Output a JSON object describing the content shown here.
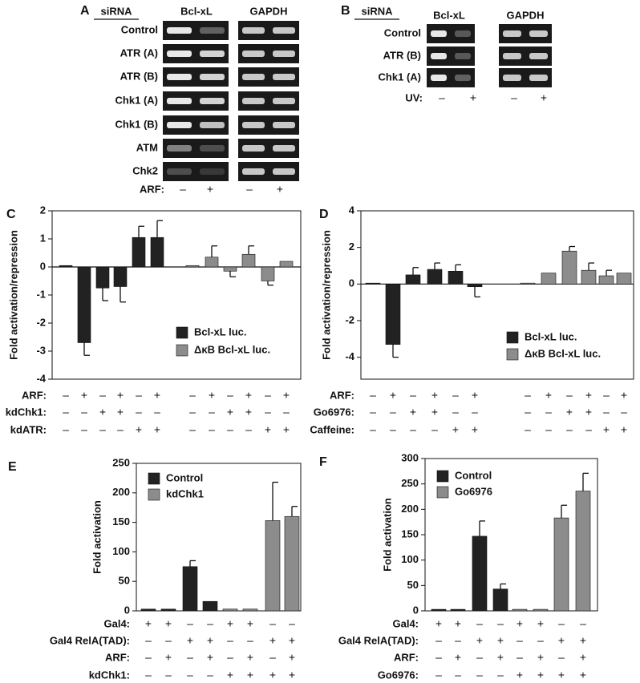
{
  "panels": [
    {
      "letter": "A",
      "header": "siRNA",
      "genes": [
        "Bcl-xL",
        "GAPDH"
      ],
      "rows": [
        "Control",
        "ATR (A)",
        "ATR (B)",
        "Chk1 (A)",
        "Chk1 (B)",
        "ATM",
        "Chk2"
      ],
      "condition": {
        "label": "ARF:",
        "signs": [
          "–",
          "+",
          "–",
          "+"
        ]
      }
    },
    {
      "letter": "B",
      "header": "siRNA",
      "genes": [
        "Bcl-xL",
        "GAPDH"
      ],
      "rows": [
        "Control",
        "ATR (B)",
        "Chk1 (A)"
      ],
      "condition": {
        "label": "UV:",
        "signs": [
          "–",
          "+",
          "–",
          "+"
        ]
      }
    }
  ],
  "chart_data": [
    {
      "type": "bar",
      "panel": "C",
      "y_label": "Fold activation/repression",
      "ylim": [
        -4,
        2
      ],
      "yticks": [
        -4,
        -3,
        -2,
        -1,
        0,
        1,
        2
      ],
      "series": [
        {
          "name": "Bcl-xL luc.",
          "color": "#222222",
          "values": [
            0.05,
            -2.7,
            -0.75,
            -0.7,
            1.05,
            1.05
          ],
          "errors": [
            null,
            0.45,
            0.45,
            0.55,
            0.4,
            0.6
          ]
        },
        {
          "name": "ΔκB Bcl-xL luc.",
          "color": "#8c8c8c",
          "values": [
            0.05,
            0.35,
            -0.15,
            0.45,
            -0.5,
            0.2
          ],
          "errors": [
            null,
            0.4,
            0.2,
            0.3,
            0.15,
            null
          ]
        }
      ],
      "conditions": [
        {
          "label": "ARF:",
          "signs": [
            "–",
            "+",
            "–",
            "+",
            "–",
            "+",
            "–",
            "+",
            "–",
            "+",
            "–",
            "+"
          ]
        },
        {
          "label": "kdChk1:",
          "signs": [
            "–",
            "–",
            "+",
            "+",
            "–",
            "–",
            "–",
            "–",
            "+",
            "+",
            "–",
            "–"
          ]
        },
        {
          "label": "kdATR:",
          "signs": [
            "–",
            "–",
            "–",
            "–",
            "+",
            "+",
            "–",
            "–",
            "–",
            "–",
            "+",
            "+"
          ]
        }
      ]
    },
    {
      "type": "bar",
      "panel": "D",
      "y_label": "Fold activation/repression",
      "ylim": [
        -5.2,
        4
      ],
      "yticks": [
        -4,
        -2,
        0,
        2,
        4
      ],
      "series": [
        {
          "name": "Bcl-xL luc.",
          "color": "#222222",
          "values": [
            0.05,
            -3.3,
            0.5,
            0.8,
            0.7,
            -0.15
          ],
          "errors": [
            null,
            0.7,
            0.4,
            0.35,
            0.35,
            0.55
          ]
        },
        {
          "name": "ΔκB Bcl-xL luc.",
          "color": "#8c8c8c",
          "values": [
            0.05,
            0.6,
            1.8,
            0.75,
            0.45,
            0.6
          ],
          "errors": [
            null,
            null,
            0.25,
            0.4,
            0.3,
            null
          ]
        }
      ],
      "conditions": [
        {
          "label": "ARF:",
          "signs": [
            "–",
            "+",
            "–",
            "+",
            "–",
            "+",
            "–",
            "+",
            "–",
            "+",
            "–",
            "+"
          ]
        },
        {
          "label": "Go6976:",
          "signs": [
            "–",
            "–",
            "+",
            "+",
            "–",
            "–",
            "–",
            "–",
            "+",
            "+",
            "–",
            "–"
          ]
        },
        {
          "label": "Caffeine:",
          "signs": [
            "–",
            "–",
            "–",
            "–",
            "+",
            "+",
            "–",
            "–",
            "–",
            "–",
            "+",
            "+"
          ]
        }
      ]
    },
    {
      "type": "bar",
      "panel": "E",
      "y_label": "Fold activation",
      "ylim": [
        0,
        250
      ],
      "yticks": [
        0,
        50,
        100,
        150,
        200,
        250
      ],
      "series": [
        {
          "name": "Control",
          "color": "#222222",
          "values": [
            3,
            3,
            75,
            16
          ],
          "errors": [
            null,
            null,
            10,
            null
          ]
        },
        {
          "name": "kdChk1",
          "color": "#8c8c8c",
          "values": [
            3,
            3,
            153,
            160
          ],
          "errors": [
            null,
            null,
            65,
            17
          ]
        }
      ],
      "conditions": [
        {
          "label": "Gal4:",
          "signs": [
            "+",
            "+",
            "–",
            "–",
            "+",
            "+",
            "–",
            "–"
          ]
        },
        {
          "label": "Gal4 RelA(TAD):",
          "signs": [
            "–",
            "–",
            "+",
            "+",
            "–",
            "–",
            "+",
            "+"
          ]
        },
        {
          "label": "ARF:",
          "signs": [
            "–",
            "+",
            "–",
            "+",
            "–",
            "+",
            "–",
            "+"
          ]
        },
        {
          "label": "kdChk1:",
          "signs": [
            "–",
            "–",
            "–",
            "–",
            "+",
            "+",
            "+",
            "+"
          ]
        }
      ]
    },
    {
      "type": "bar",
      "panel": "F",
      "y_label": "Fold activation",
      "ylim": [
        0,
        300
      ],
      "yticks": [
        0,
        50,
        100,
        150,
        200,
        250,
        300
      ],
      "series": [
        {
          "name": "Control",
          "color": "#222222",
          "values": [
            3,
            3,
            147,
            43
          ],
          "errors": [
            null,
            null,
            30,
            10
          ]
        },
        {
          "name": "Go6976",
          "color": "#8c8c8c",
          "values": [
            3,
            3,
            183,
            236
          ],
          "errors": [
            null,
            null,
            25,
            35
          ]
        }
      ],
      "conditions": [
        {
          "label": "Gal4:",
          "signs": [
            "+",
            "+",
            "–",
            "–",
            "+",
            "+",
            "–",
            "–"
          ]
        },
        {
          "label": "Gal4 RelA(TAD):",
          "signs": [
            "–",
            "–",
            "+",
            "+",
            "–",
            "–",
            "+",
            "+"
          ]
        },
        {
          "label": "ARF:",
          "signs": [
            "–",
            "+",
            "–",
            "+",
            "–",
            "+",
            "–",
            "+"
          ]
        },
        {
          "label": "Go6976:",
          "signs": [
            "–",
            "–",
            "–",
            "–",
            "+",
            "+",
            "+",
            "+"
          ]
        }
      ]
    }
  ]
}
